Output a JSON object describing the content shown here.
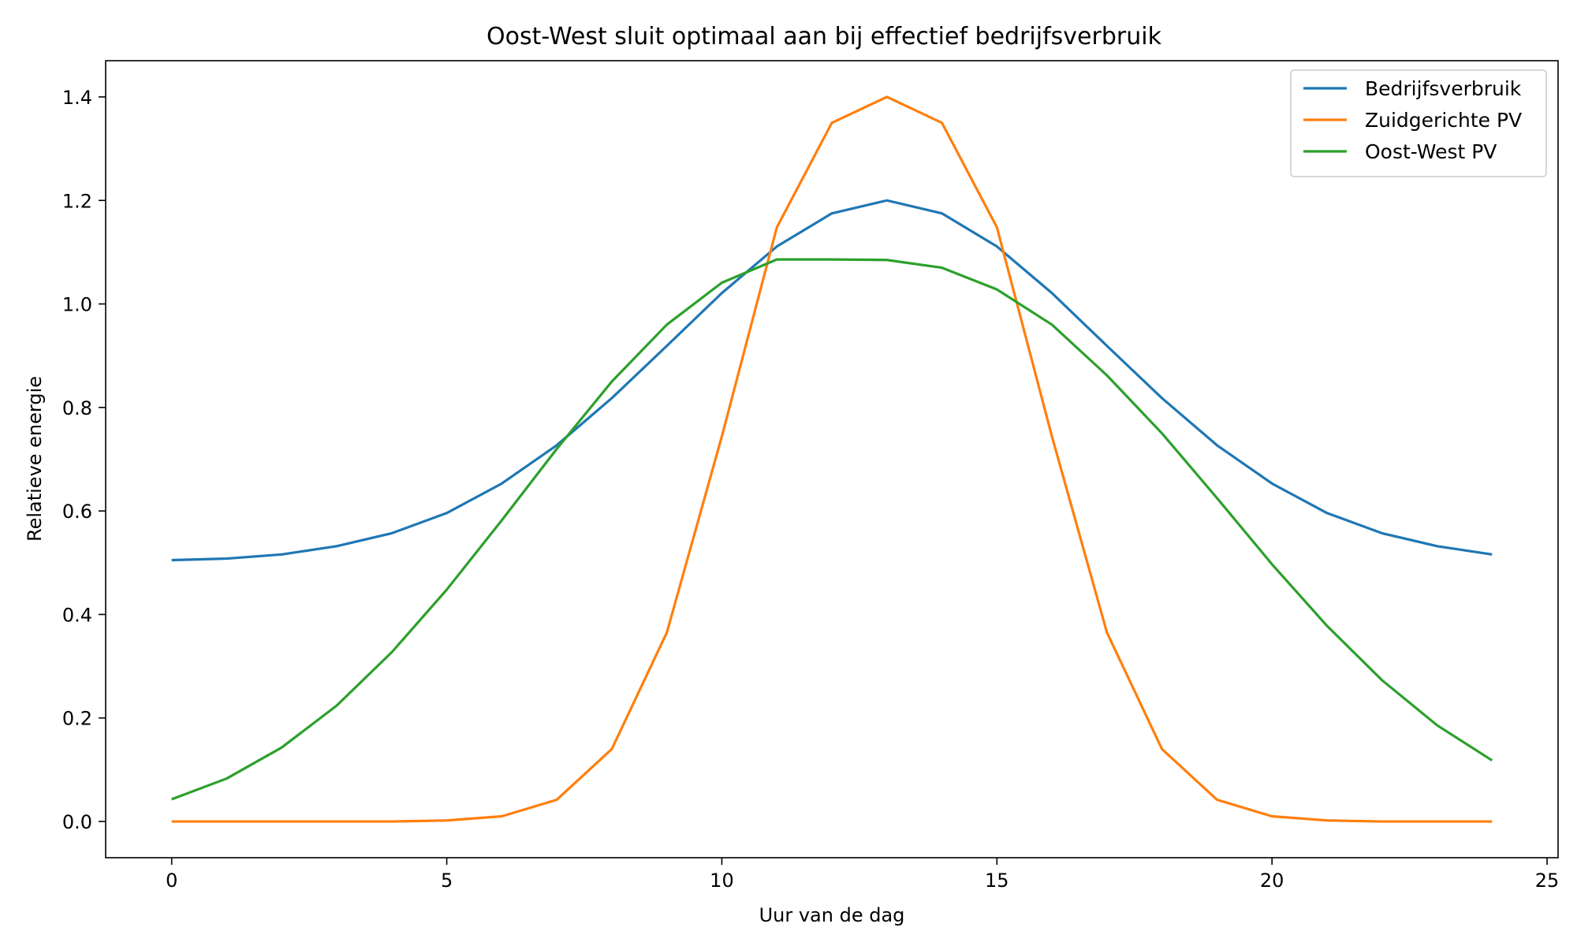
{
  "chart_data": {
    "type": "line",
    "title": "Oost-West sluit optimaal aan bij effectief bedrijfsverbruik",
    "xlabel": "Uur van de dag",
    "ylabel": "Relatieve energie",
    "xlim": [
      -1.2,
      25.2
    ],
    "ylim": [
      -0.07,
      1.47
    ],
    "xticks": [
      0,
      5,
      10,
      15,
      20,
      25
    ],
    "xtick_labels": [
      "0",
      "5",
      "10",
      "15",
      "20",
      "25"
    ],
    "yticks": [
      0.0,
      0.2,
      0.4,
      0.6,
      0.8,
      1.0,
      1.2,
      1.4
    ],
    "ytick_labels": [
      "0.0",
      "0.2",
      "0.4",
      "0.6",
      "0.8",
      "1.0",
      "1.2",
      "1.4"
    ],
    "grid": false,
    "legend_position": "top-right",
    "x": [
      0,
      1,
      2,
      3,
      4,
      5,
      6,
      7,
      8,
      9,
      10,
      11,
      12,
      13,
      14,
      15,
      16,
      17,
      18,
      19,
      20,
      21,
      22,
      23,
      24
    ],
    "series": [
      {
        "name": "Bedrijfsverbruik",
        "color": "#1f77b4",
        "values": [
          0.505,
          0.508,
          0.516,
          0.532,
          0.557,
          0.596,
          0.653,
          0.727,
          0.818,
          0.919,
          1.021,
          1.111,
          1.175,
          1.2,
          1.175,
          1.111,
          1.021,
          0.919,
          0.818,
          0.727,
          0.653,
          0.596,
          0.557,
          0.532,
          0.516
        ]
      },
      {
        "name": "Zuidgerichte PV",
        "color": "#ff7f0e",
        "values": [
          0.0,
          0.0,
          0.0,
          0.0,
          0.0,
          0.002,
          0.01,
          0.042,
          0.14,
          0.365,
          0.744,
          1.148,
          1.35,
          1.4,
          1.35,
          1.148,
          0.744,
          0.365,
          0.14,
          0.042,
          0.01,
          0.002,
          0.0,
          0.0,
          0.0
        ]
      },
      {
        "name": "Oost-West PV",
        "color": "#2ca02c",
        "values": [
          0.043,
          0.083,
          0.143,
          0.224,
          0.327,
          0.448,
          0.582,
          0.72,
          0.85,
          0.96,
          1.041,
          1.086,
          1.086,
          1.085,
          1.07,
          1.028,
          0.96,
          0.862,
          0.75,
          0.625,
          0.497,
          0.378,
          0.273,
          0.186,
          0.118
        ]
      }
    ]
  }
}
